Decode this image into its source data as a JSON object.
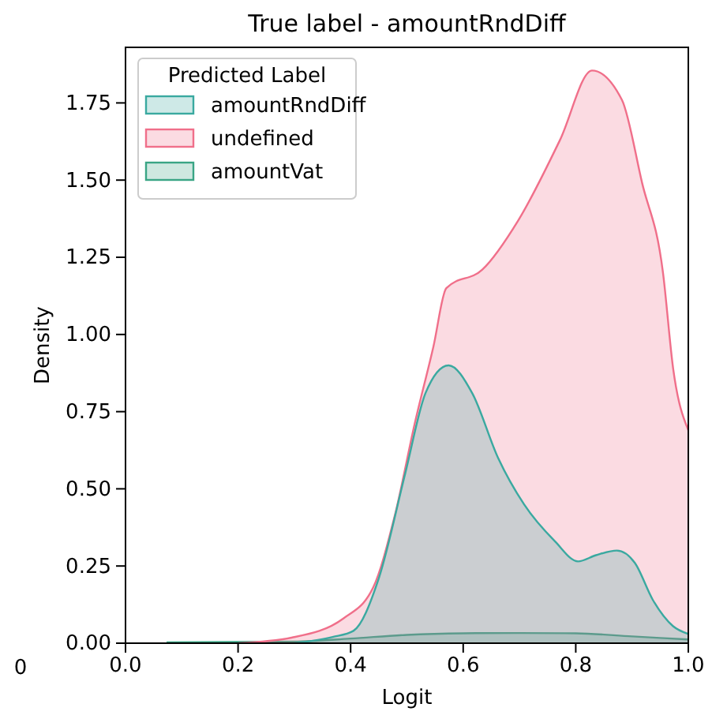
{
  "chart_data": {
    "type": "area",
    "title": "True label - amountRndDiff",
    "xlabel": "Logit",
    "ylabel": "Density",
    "legend_title": "Predicted Label",
    "xlim": [
      0,
      1
    ],
    "xticks": [
      {
        "value": 0,
        "label": "0.0"
      },
      0.2,
      0.4,
      0.6,
      0.8,
      {
        "value": 1,
        "label": "1.0"
      }
    ],
    "ylim": [
      0,
      1.93
    ],
    "yticks": [
      {
        "value": 0,
        "label": "0.00"
      },
      {
        "value": 0.25,
        "label": "0.25"
      },
      {
        "value": 0.5,
        "label": "0.50"
      },
      {
        "value": 0.75,
        "label": "0.75"
      },
      {
        "value": 1,
        "label": "1.00"
      },
      {
        "value": 1.25,
        "label": "1.25"
      },
      {
        "value": 1.5,
        "label": "1.50"
      },
      {
        "value": 1.75,
        "label": "1.75"
      }
    ],
    "legend": "top left",
    "grid": false,
    "annotations": [
      "0"
    ],
    "series": [
      {
        "name": "amountRndDiff",
        "color": "#3aa9a0",
        "x": [
          0.3,
          0.368,
          0.405,
          0.45,
          0.497,
          0.533,
          0.574,
          0.616,
          0.662,
          0.708,
          0.763,
          0.804,
          0.836,
          0.873,
          0.905,
          0.937,
          0.973,
          1.0
        ],
        "values": [
          0,
          0.02,
          0.04,
          0.21,
          0.55,
          0.81,
          0.9,
          0.81,
          0.6,
          0.45,
          0.33,
          0.265,
          0.285,
          0.3,
          0.26,
          0.14,
          0.055,
          0.03
        ]
      },
      {
        "name": "undefined",
        "color": "#f06f8a",
        "x": [
          0.2,
          0.295,
          0.387,
          0.44,
          0.478,
          0.515,
          0.547,
          0.57,
          0.634,
          0.698,
          0.772,
          0.829,
          0.882,
          0.918,
          0.955,
          0.973,
          1.0
        ],
        "values": [
          0,
          0.018,
          0.08,
          0.18,
          0.41,
          0.72,
          0.96,
          1.15,
          1.21,
          1.37,
          1.63,
          1.855,
          1.76,
          1.49,
          1.2,
          0.89,
          0.69
        ]
      },
      {
        "name": "amountVat",
        "color": "#3aa585",
        "x": [
          0.073,
          0.3,
          0.4,
          0.5,
          0.6,
          0.7,
          0.8,
          0.9,
          1.0
        ],
        "values": [
          0.003,
          0.005,
          0.015,
          0.027,
          0.032,
          0.033,
          0.032,
          0.022,
          0.012
        ]
      }
    ]
  }
}
